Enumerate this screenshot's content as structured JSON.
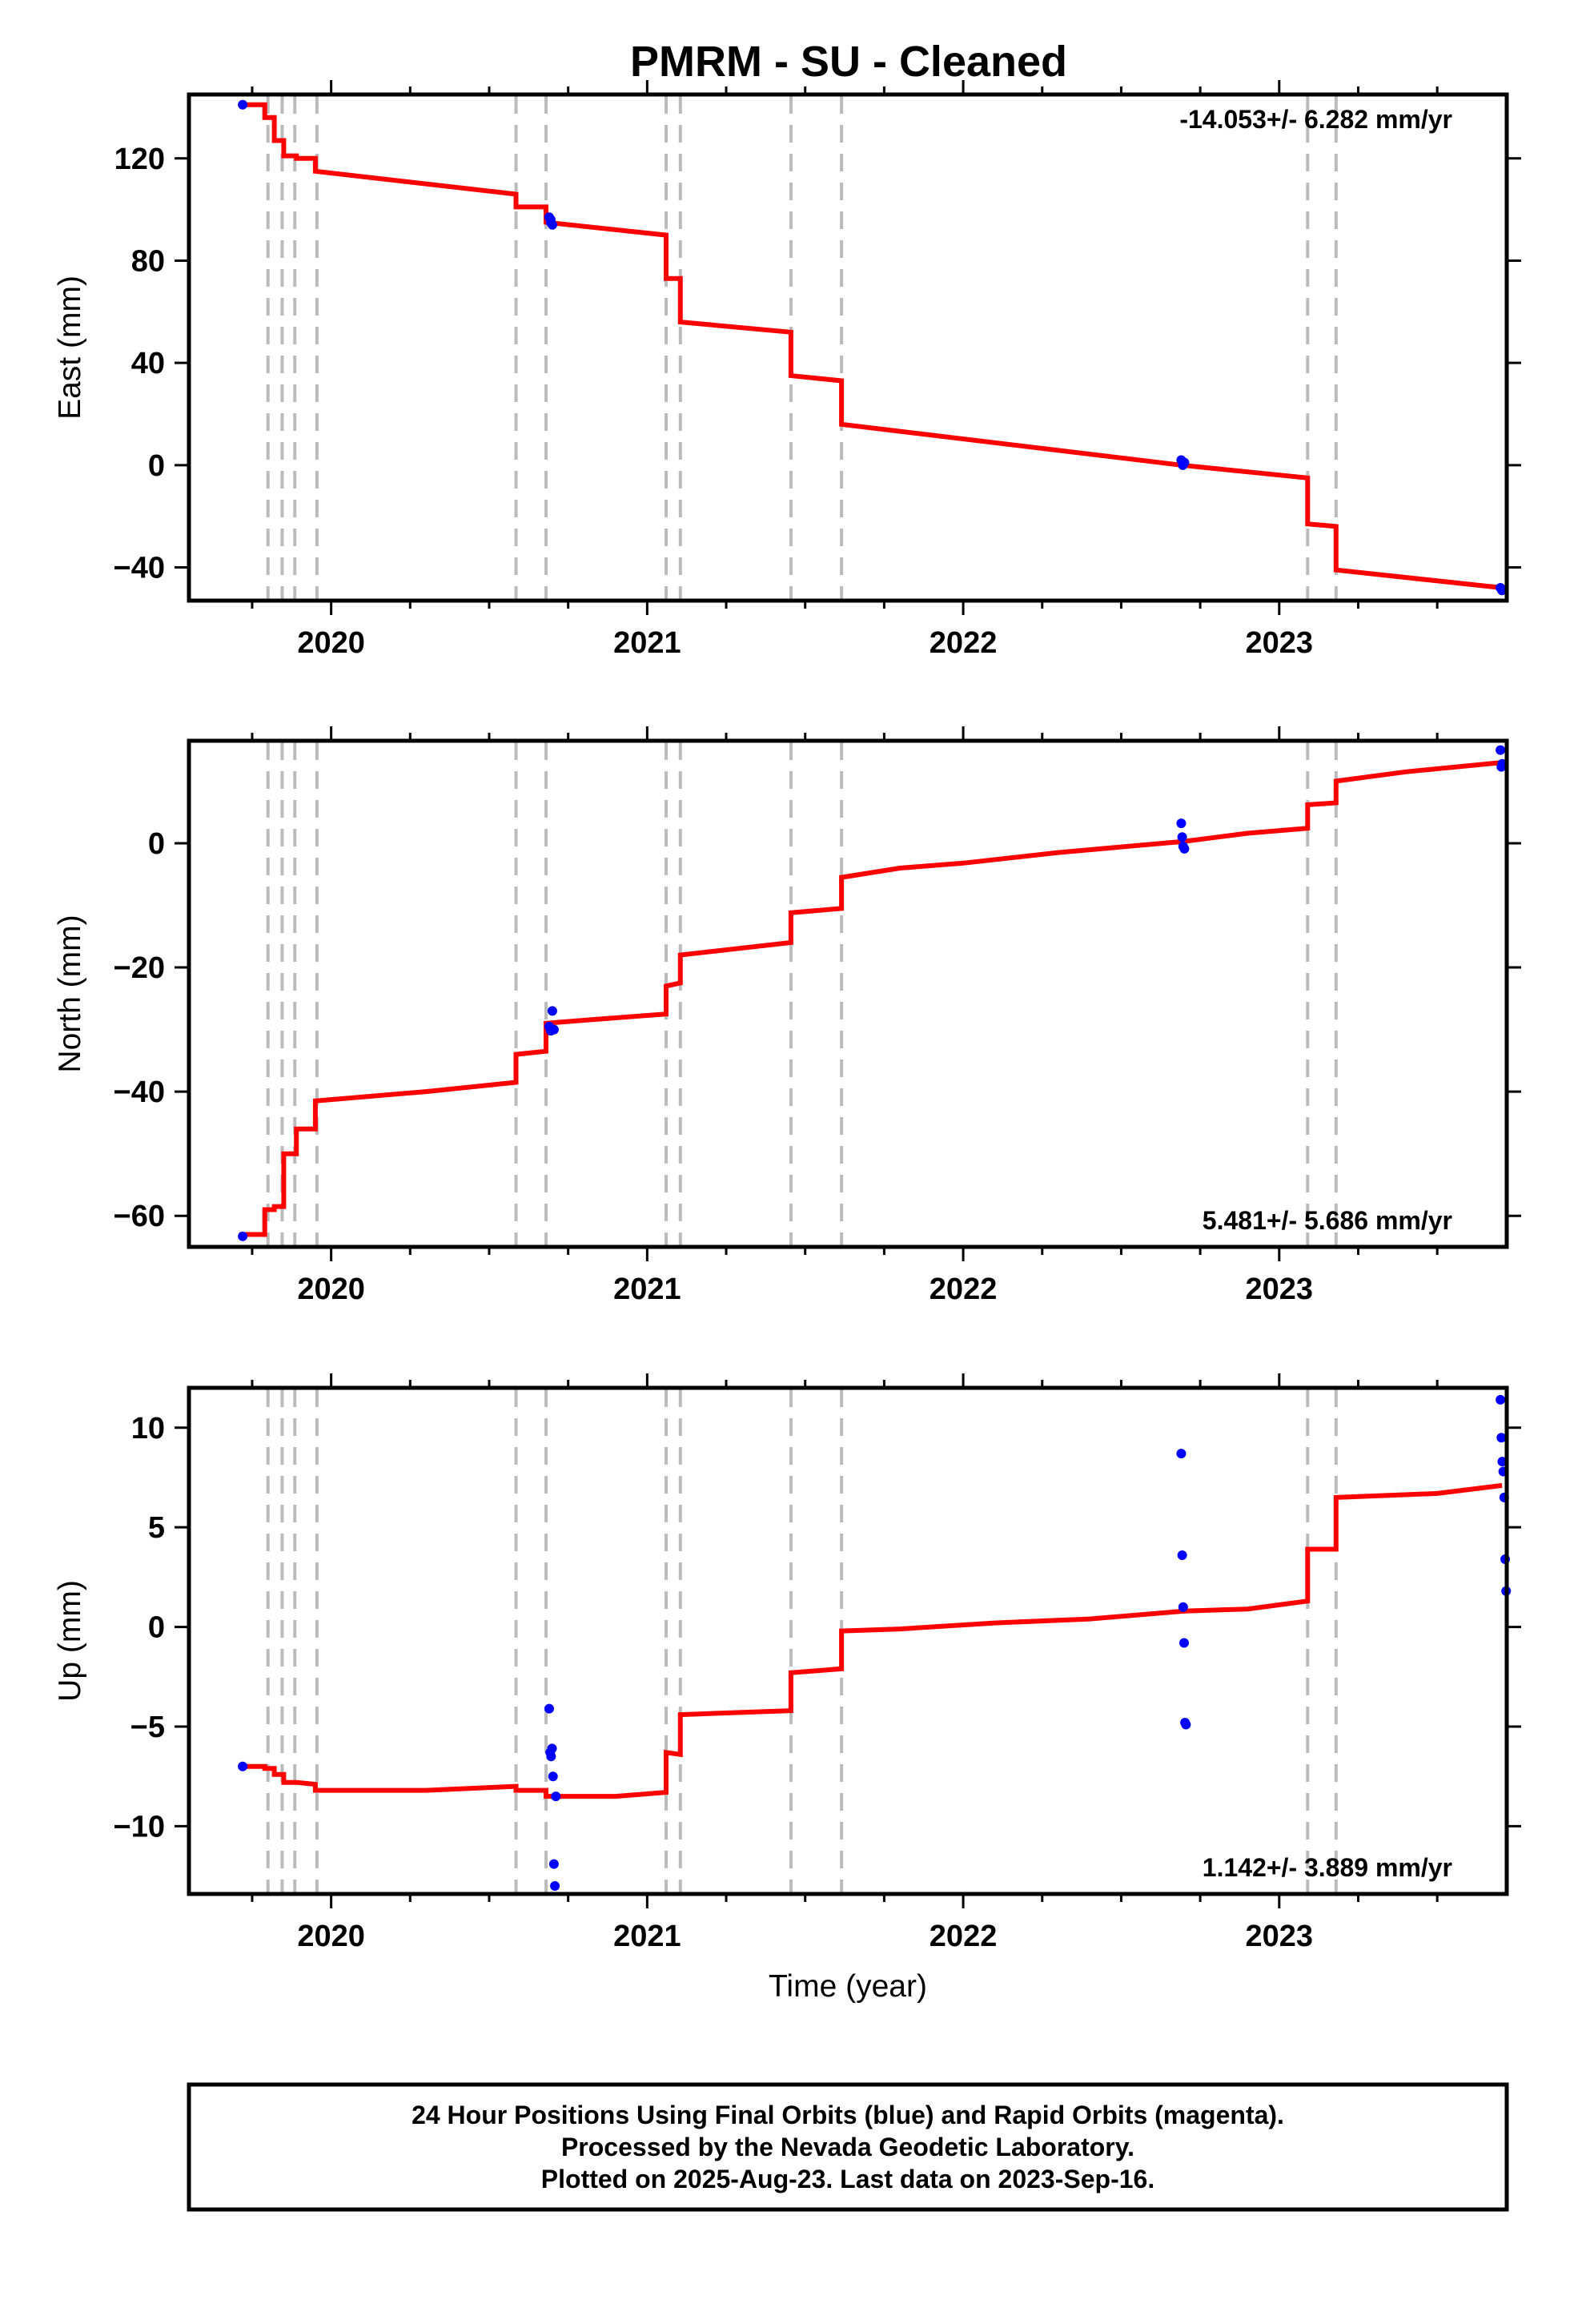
{
  "title": "PMRM  - SU - Cleaned",
  "colors": {
    "model": "#ff0000",
    "final_orbits": "#0000ff",
    "offset_lines": "#bbbbbb",
    "frame": "#000000"
  },
  "footer": {
    "line1": "24 Hour Positions Using Final Orbits (blue) and Rapid Orbits (magenta).",
    "line2": "Processed by the Nevada Geodetic Laboratory.",
    "line3": "Plotted on 2025-Aug-23. Last data on 2023-Sep-16."
  },
  "chart_data": [
    {
      "type": "line",
      "name": "east",
      "ylabel": "East (mm)",
      "xlabel": "",
      "rate_text": "-14.053+/- 6.282 mm/yr",
      "rate_position": "top-right",
      "xlim": [
        2019.55,
        2023.72
      ],
      "ylim": [
        -53,
        145
      ],
      "x_ticks": [
        2020,
        2021,
        2022,
        2023
      ],
      "y_ticks": [
        -40,
        0,
        40,
        80,
        120
      ],
      "offset_epochs": [
        2019.8,
        2019.845,
        2019.885,
        2019.955,
        2020.585,
        2020.68,
        2021.06,
        2021.105,
        2021.455,
        2021.615,
        2023.09,
        2023.18
      ],
      "model_line": {
        "x": [
          2019.71,
          2019.79,
          2019.79,
          2019.82,
          2019.82,
          2019.85,
          2019.85,
          2019.89,
          2019.89,
          2019.95,
          2019.95,
          2020.585,
          2020.585,
          2020.68,
          2020.68,
          2021.06,
          2021.06,
          2021.105,
          2021.105,
          2021.455,
          2021.455,
          2021.615,
          2021.615,
          2022.69,
          2023.09,
          2023.09,
          2023.18,
          2023.18,
          2023.705
        ],
        "y": [
          141,
          141,
          136,
          136,
          127,
          127,
          121,
          121,
          120,
          120,
          115,
          106,
          101,
          101,
          95,
          90,
          73,
          73,
          56,
          52,
          35,
          33,
          16,
          0,
          -5,
          -23,
          -24,
          -41,
          -48
        ]
      },
      "final_orbits": {
        "x": [
          2019.72,
          2020.69,
          2020.695,
          2020.7,
          2020.695,
          2022.69,
          2022.695,
          2022.7,
          2023.7,
          2023.705
        ],
        "y": [
          141,
          97,
          95,
          94,
          96,
          2,
          0,
          1,
          -48,
          -49
        ]
      }
    },
    {
      "type": "line",
      "name": "north",
      "ylabel": "North (mm)",
      "xlabel": "",
      "rate_text": "5.481+/- 5.686 mm/yr",
      "rate_position": "bottom-right",
      "xlim": [
        2019.55,
        2023.72
      ],
      "ylim": [
        -65,
        16.5
      ],
      "x_ticks": [
        2020,
        2021,
        2022,
        2023
      ],
      "y_ticks": [
        -60,
        -40,
        -20,
        0
      ],
      "offset_epochs": [
        2019.8,
        2019.845,
        2019.885,
        2019.955,
        2020.585,
        2020.68,
        2021.06,
        2021.105,
        2021.455,
        2021.615,
        2023.09,
        2023.18
      ],
      "model_line": {
        "x": [
          2019.71,
          2019.79,
          2019.79,
          2019.82,
          2019.82,
          2019.85,
          2019.85,
          2019.89,
          2019.89,
          2019.95,
          2019.95,
          2020.3,
          2020.585,
          2020.585,
          2020.68,
          2020.68,
          2020.8,
          2021.06,
          2021.06,
          2021.105,
          2021.105,
          2021.455,
          2021.455,
          2021.615,
          2021.615,
          2021.8,
          2022.0,
          2022.3,
          2022.7,
          2022.9,
          2023.09,
          2023.09,
          2023.18,
          2023.18,
          2023.4,
          2023.705
        ],
        "y": [
          -63,
          -63,
          -59,
          -59,
          -58.5,
          -58.5,
          -50,
          -50,
          -46,
          -46,
          -41.5,
          -40,
          -38.5,
          -34,
          -33.5,
          -29,
          -28.5,
          -27.5,
          -23,
          -22.5,
          -18,
          -16,
          -11.2,
          -10.5,
          -5.5,
          -4,
          -3.2,
          -1.5,
          0.3,
          1.6,
          2.4,
          6.2,
          6.5,
          10,
          11.5,
          13
        ]
      },
      "final_orbits": {
        "x": [
          2019.72,
          2020.69,
          2020.695,
          2020.7,
          2020.705,
          2022.69,
          2022.693,
          2022.696,
          2022.7,
          2023.7,
          2023.703,
          2023.706
        ],
        "y": [
          -63.3,
          -29.5,
          -30.2,
          -27,
          -30,
          3.2,
          1,
          -0.5,
          -0.9,
          15,
          12.3,
          12.8
        ]
      }
    },
    {
      "type": "line",
      "name": "up",
      "ylabel": "Up (mm)",
      "xlabel": "Time (year)",
      "rate_text": "1.142+/- 3.889 mm/yr",
      "rate_position": "bottom-right",
      "xlim": [
        2019.55,
        2023.72
      ],
      "ylim": [
        -13.4,
        12
      ],
      "x_ticks": [
        2020,
        2021,
        2022,
        2023
      ],
      "y_ticks": [
        -10,
        -5,
        0,
        5,
        10
      ],
      "offset_epochs": [
        2019.8,
        2019.845,
        2019.885,
        2019.955,
        2020.585,
        2020.68,
        2021.06,
        2021.105,
        2021.455,
        2021.615,
        2023.09,
        2023.18
      ],
      "model_line": {
        "x": [
          2019.71,
          2019.79,
          2019.79,
          2019.82,
          2019.82,
          2019.85,
          2019.85,
          2019.89,
          2019.89,
          2019.95,
          2019.95,
          2020.3,
          2020.585,
          2020.585,
          2020.68,
          2020.68,
          2020.9,
          2021.06,
          2021.06,
          2021.105,
          2021.105,
          2021.455,
          2021.455,
          2021.615,
          2021.615,
          2021.8,
          2022.1,
          2022.4,
          2022.7,
          2022.9,
          2023.09,
          2023.09,
          2023.18,
          2023.18,
          2023.5,
          2023.705
        ],
        "y": [
          -7,
          -7,
          -7.1,
          -7.1,
          -7.4,
          -7.4,
          -7.8,
          -7.8,
          -7.8,
          -7.9,
          -8.2,
          -8.2,
          -8,
          -8.2,
          -8.2,
          -8.5,
          -8.5,
          -8.3,
          -6.3,
          -6.4,
          -4.4,
          -4.2,
          -2.3,
          -2.1,
          -0.2,
          -0.1,
          0.2,
          0.4,
          0.8,
          0.9,
          1.3,
          3.9,
          3.9,
          6.5,
          6.7,
          7.1
        ]
      },
      "final_orbits": {
        "x": [
          2019.72,
          2020.69,
          2020.693,
          2020.696,
          2020.699,
          2020.702,
          2020.705,
          2020.708,
          2020.711,
          2022.69,
          2022.693,
          2022.696,
          2022.699,
          2022.702,
          2022.705,
          2023.7,
          2023.703,
          2023.706,
          2023.709,
          2023.712,
          2023.715,
          2023.718
        ],
        "y": [
          -7,
          -4.1,
          -6.3,
          -6.5,
          -6.1,
          -7.5,
          -11.9,
          -13,
          -8.5,
          8.7,
          3.6,
          1.0,
          -0.8,
          -4.8,
          -4.9,
          11.4,
          9.5,
          8.3,
          7.8,
          6.5,
          3.4,
          1.8
        ]
      }
    }
  ]
}
